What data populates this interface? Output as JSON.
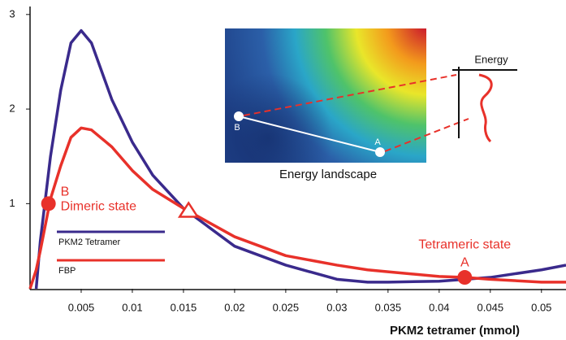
{
  "chart_data": {
    "type": "line",
    "x": [
      0,
      0.0006,
      0.001,
      0.002,
      0.003,
      0.004,
      0.005,
      0.006,
      0.008,
      0.01,
      0.012,
      0.015,
      0.02,
      0.025,
      0.03,
      0.033,
      0.035,
      0.04,
      0.0425,
      0.045,
      0.05,
      0.0524
    ],
    "series": [
      {
        "name": "PKM2 Tetramer",
        "color": "#3a2a8c",
        "values": [
          null,
          0.1,
          0.6,
          1.5,
          2.2,
          2.7,
          2.83,
          2.7,
          2.1,
          1.65,
          1.3,
          0.95,
          0.55,
          0.35,
          0.2,
          0.17,
          0.17,
          0.18,
          0.2,
          0.22,
          0.3,
          0.35
        ]
      },
      {
        "name": "FBP",
        "color": "#e8312a",
        "values": [
          0.1,
          0.3,
          0.5,
          1.05,
          1.4,
          1.7,
          1.8,
          1.78,
          1.6,
          1.35,
          1.15,
          0.95,
          0.65,
          0.45,
          0.35,
          0.3,
          0.28,
          0.23,
          0.22,
          0.2,
          0.17,
          0.17
        ]
      }
    ],
    "x_label": "PKM2 tetramer (mmol)",
    "xlim": [
      0,
      0.0524
    ],
    "xticks": [
      0.005,
      0.01,
      0.015,
      0.02,
      0.025,
      0.03,
      0.035,
      0.04,
      0.045,
      0.05
    ],
    "ylim": [
      0.1,
      3.05
    ],
    "yticks": [
      1,
      2,
      3
    ],
    "annotations": [
      {
        "label": "B",
        "text": "Dimeric state",
        "x": 0.0018,
        "y": 1.0
      },
      {
        "label": "A",
        "text": "Tetrameric state",
        "x": 0.0425,
        "y": 0.22
      }
    ],
    "crossing": {
      "x": 0.0155,
      "y": 0.93
    },
    "inset": {
      "caption": "Energy landscape",
      "energy_label": "Energy",
      "point_labels": [
        "B",
        "A"
      ]
    }
  }
}
